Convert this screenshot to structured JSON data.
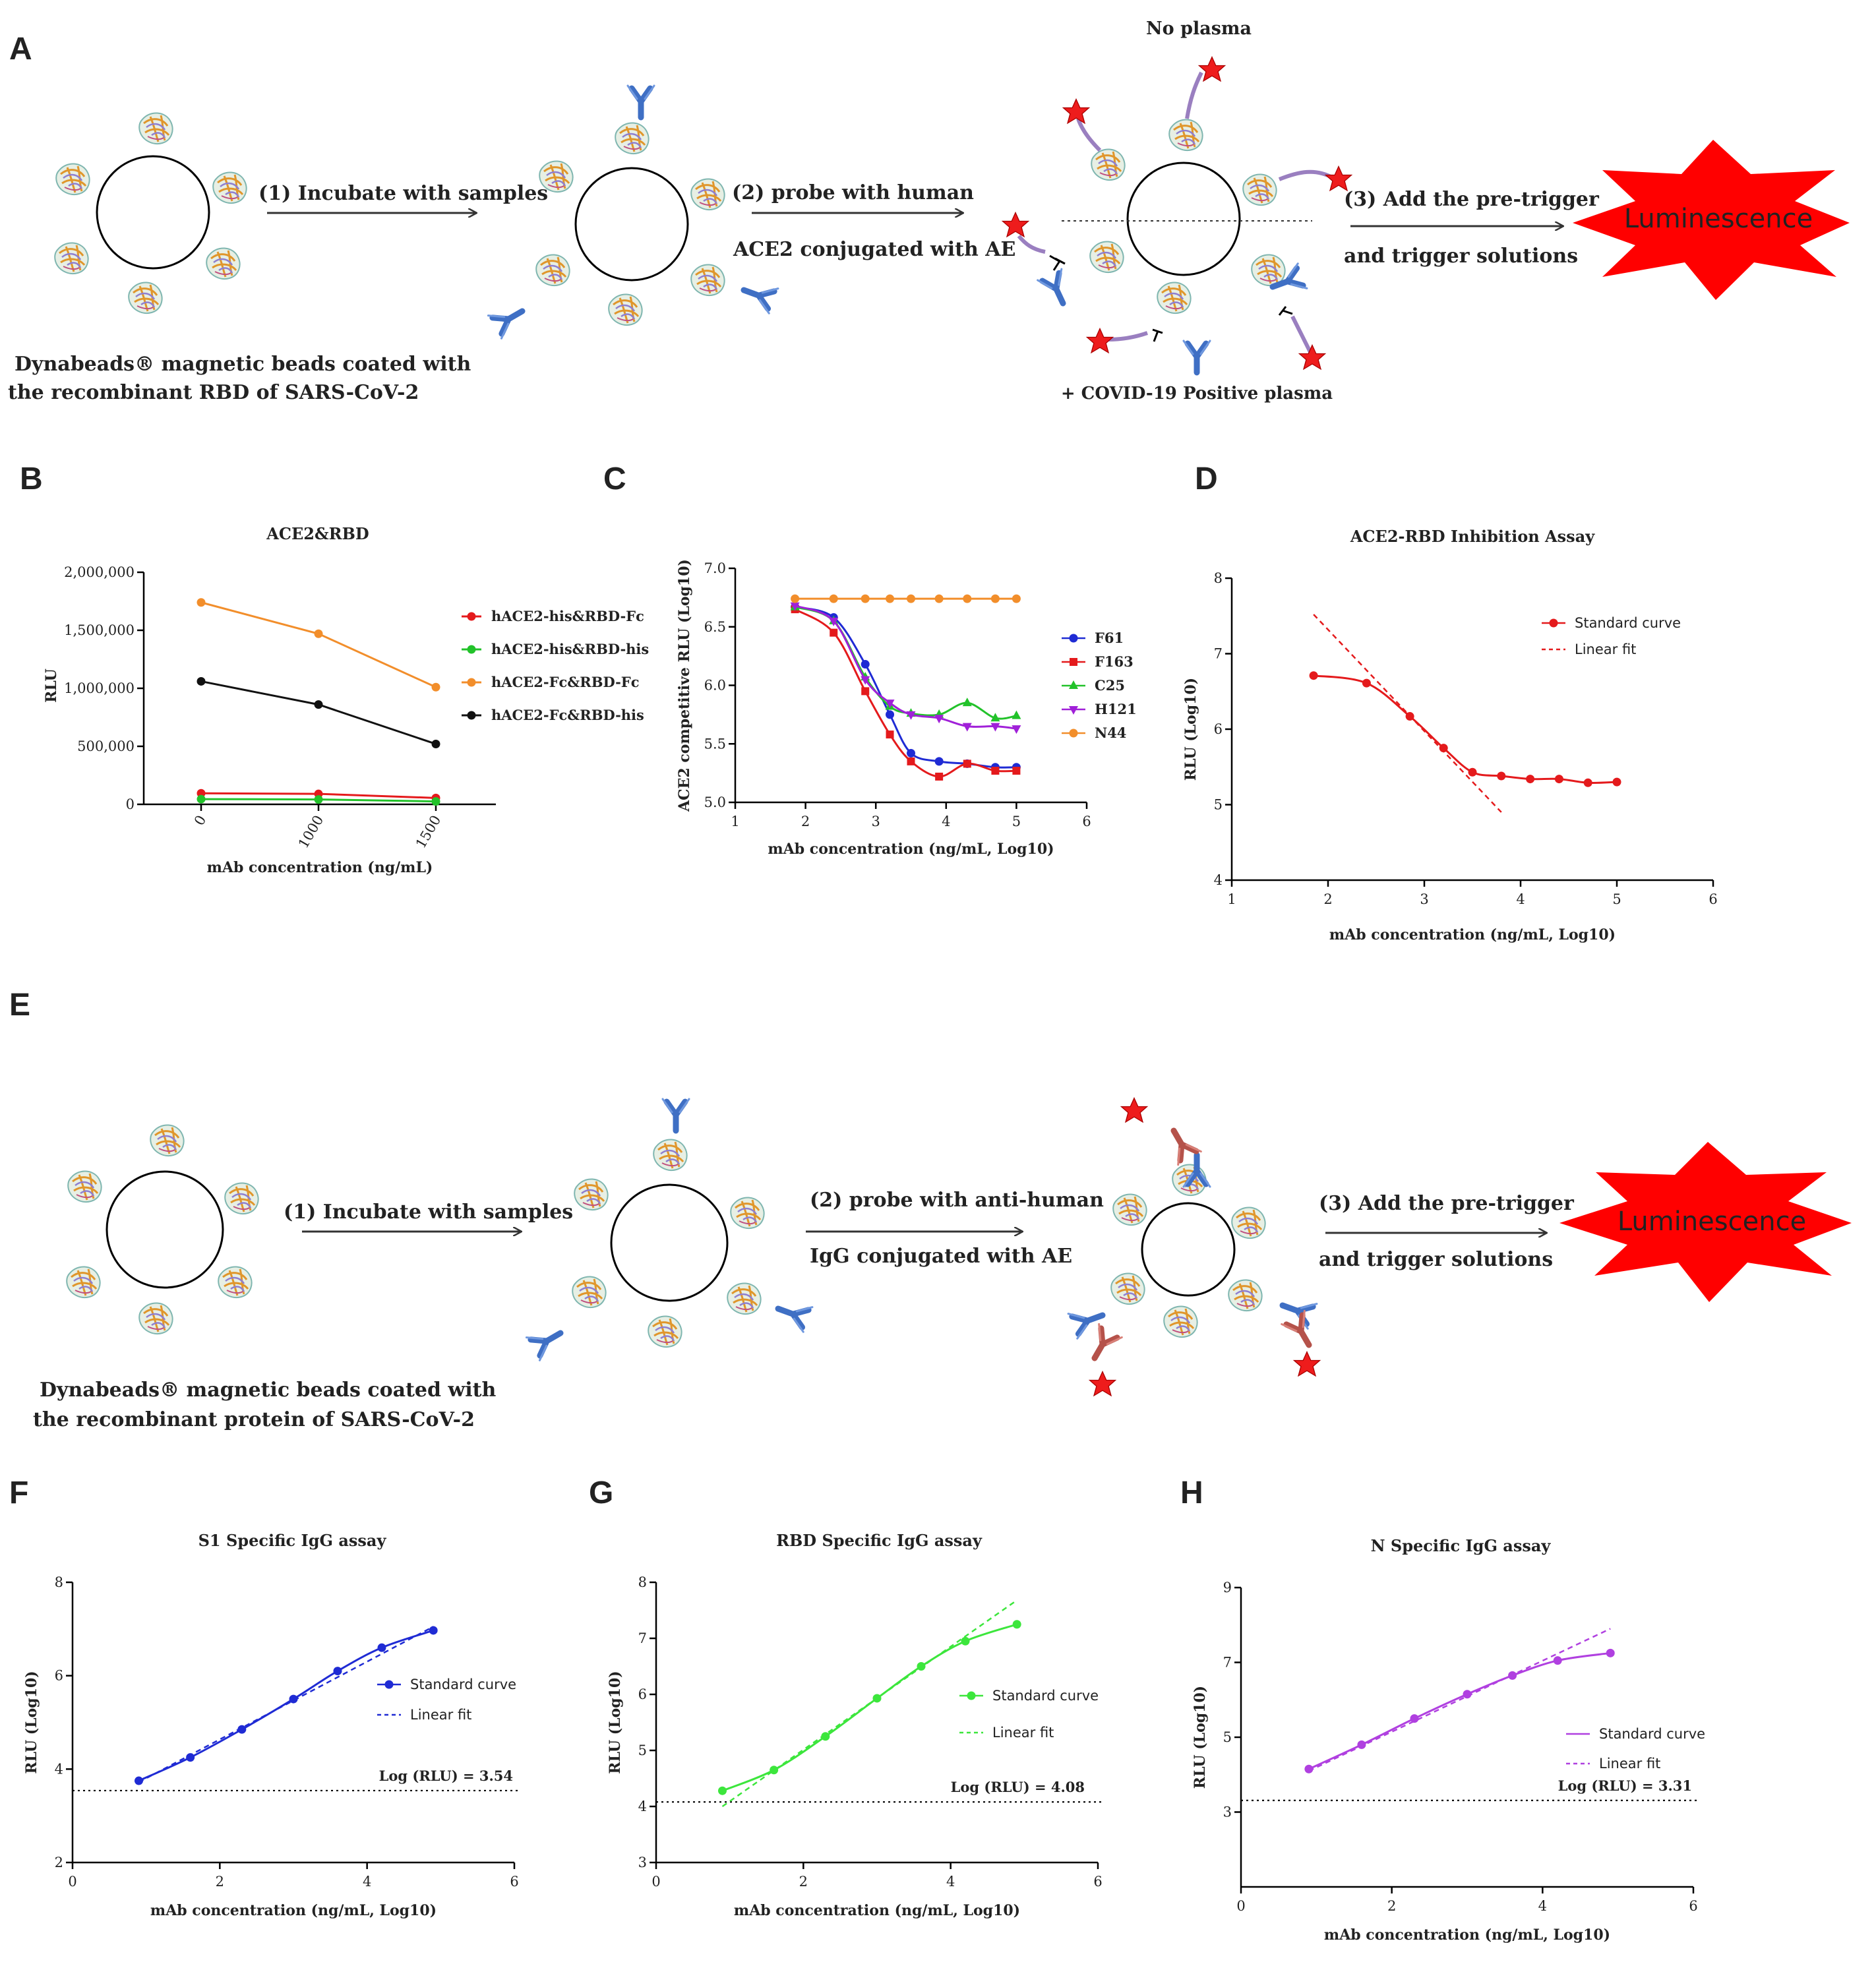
{
  "colors": {
    "red": "#e41a1c",
    "green": "#22c22a",
    "orange": "#f28e2b",
    "black": "#111111",
    "blue": "#1f2bd4",
    "magenta": "#a020d8",
    "lime": "#3ce63c",
    "purple": "#b040e0",
    "antibody": "#3f6fc4",
    "antibody_ae": "#b5524a",
    "star": "#ee1c1c"
  },
  "panel_labels": {
    "A": "A",
    "B": "B",
    "C": "C",
    "D": "D",
    "E": "E",
    "F": "F",
    "G": "G",
    "H": "H"
  },
  "diagramA": {
    "step1": "(1) Incubate with samples",
    "step2a": "(2) probe with human",
    "step2b": "ACE2 conjugated with AE",
    "step3a": "(3) Add the pre-trigger",
    "step3b": "and trigger solutions",
    "no_plasma": "No plasma",
    "positive": "+ COVID-19 Positive plasma",
    "luminescence": "Luminescence",
    "caption1": "Dynabeads® magnetic beads coated with",
    "caption2": "the recombinant RBD of SARS-CoV-2"
  },
  "diagramE": {
    "step1": "(1) Incubate with samples",
    "step2a": "(2) probe with anti-human",
    "step2b": "IgG conjugated with AE",
    "step3a": "(3) Add the pre-trigger",
    "step3b": "and trigger solutions",
    "luminescence": "Luminescence",
    "caption1": "Dynabeads® magnetic beads coated with",
    "caption2": "the recombinant protein of SARS-CoV-2"
  },
  "chart_data": [
    {
      "id": "B",
      "type": "line",
      "title": "ACE2&RBD",
      "xlabel": "mAb concentration (ng/mL)",
      "ylabel": "RLU",
      "categories": [
        "0",
        "1000",
        "1500"
      ],
      "ylim": [
        0,
        2000000
      ],
      "yticks": [
        "0",
        "500,000",
        "1,000,000",
        "1,500,000",
        "2,000,000"
      ],
      "legend_position": "right",
      "series": [
        {
          "name": "hACE2-his&RBD-Fc",
          "color_key": "red",
          "values": [
            95000,
            90000,
            55000
          ]
        },
        {
          "name": "hACE2-his&RBD-his",
          "color_key": "green",
          "values": [
            45000,
            42000,
            25000
          ]
        },
        {
          "name": "hACE2-Fc&RBD-Fc",
          "color_key": "orange",
          "values": [
            1740000,
            1470000,
            1010000
          ]
        },
        {
          "name": "hACE2-Fc&RBD-his",
          "color_key": "black",
          "values": [
            1060000,
            860000,
            520000
          ]
        }
      ]
    },
    {
      "id": "C",
      "type": "line",
      "title": "",
      "xlabel": "mAb concentration (ng/mL, Log10)",
      "ylabel": "ACE2 competitive RLU (Log10)",
      "xlim": [
        1,
        6
      ],
      "ylim": [
        5.0,
        7.0
      ],
      "xticks": [
        "1",
        "2",
        "3",
        "4",
        "5",
        "6"
      ],
      "yticks": [
        "5.0",
        "5.5",
        "6.0",
        "6.5",
        "7.0"
      ],
      "legend_position": "right",
      "x": [
        1.85,
        2.4,
        2.85,
        3.2,
        3.5,
        3.9,
        4.3,
        4.7,
        5.0
      ],
      "series": [
        {
          "name": "F61",
          "color_key": "blue",
          "values": [
            6.67,
            6.58,
            6.18,
            5.75,
            5.42,
            5.35,
            5.33,
            5.3,
            5.3
          ]
        },
        {
          "name": "F163",
          "color_key": "red",
          "values": [
            6.65,
            6.45,
            5.95,
            5.58,
            5.35,
            5.22,
            5.33,
            5.27,
            5.27
          ]
        },
        {
          "name": "C25",
          "color_key": "green",
          "values": [
            6.67,
            6.55,
            6.07,
            5.82,
            5.76,
            5.75,
            5.85,
            5.72,
            5.74
          ]
        },
        {
          "name": "H121",
          "color_key": "magenta",
          "values": [
            6.68,
            6.55,
            6.05,
            5.85,
            5.75,
            5.72,
            5.65,
            5.65,
            5.63
          ]
        },
        {
          "name": "N44",
          "color_key": "orange",
          "values": [
            6.74,
            6.74,
            6.74,
            6.74,
            6.74,
            6.74,
            6.74,
            6.74,
            6.74
          ]
        }
      ]
    },
    {
      "id": "D",
      "type": "line",
      "title": "ACE2-RBD Inhibition Assay",
      "xlabel": "mAb concentration (ng/mL, Log10)",
      "ylabel": "RLU (Log10)",
      "xlim": [
        1,
        6
      ],
      "ylim": [
        4,
        8
      ],
      "xticks": [
        "1",
        "2",
        "3",
        "4",
        "5",
        "6"
      ],
      "yticks": [
        "4",
        "5",
        "6",
        "7",
        "8"
      ],
      "legend_position": "top-right",
      "x": [
        1.85,
        2.4,
        2.85,
        3.2,
        3.5,
        3.8,
        4.1,
        4.4,
        4.7,
        5.0
      ],
      "series": [
        {
          "name": "Standard curve",
          "color_key": "red",
          "values": [
            6.71,
            6.61,
            6.17,
            5.75,
            5.43,
            5.38,
            5.34,
            5.34,
            5.29,
            5.3
          ]
        },
        {
          "name": "Linear fit",
          "color_key": "red",
          "dashed": true,
          "x": [
            1.85,
            3.8
          ],
          "values": [
            7.52,
            4.9
          ]
        }
      ]
    },
    {
      "id": "F",
      "type": "line",
      "title": "S1 Specific IgG assay",
      "xlabel": "mAb concentration (ng/mL, Log10)",
      "ylabel": "RLU (Log10)",
      "xlim": [
        0,
        6
      ],
      "ylim": [
        2,
        8
      ],
      "xticks": [
        "0",
        "2",
        "4",
        "6"
      ],
      "yticks": [
        "2",
        "4",
        "6",
        "8"
      ],
      "legend_position": "right",
      "threshold": 3.54,
      "threshold_label": "Log (RLU) = 3.54",
      "x": [
        0.9,
        1.6,
        2.3,
        3.0,
        3.6,
        4.2,
        4.9
      ],
      "series": [
        {
          "name": "Standard curve",
          "color_key": "blue",
          "values": [
            3.75,
            4.25,
            4.85,
            5.5,
            6.1,
            6.6,
            6.97
          ]
        },
        {
          "name": "Linear fit",
          "color_key": "blue",
          "dashed": true,
          "x": [
            0.9,
            4.9
          ],
          "values": [
            3.72,
            7.05
          ]
        }
      ]
    },
    {
      "id": "G",
      "type": "line",
      "title": "RBD Specific IgG assay",
      "xlabel": "mAb concentration (ng/mL, Log10)",
      "ylabel": "RLU (Log10)",
      "xlim": [
        0,
        6
      ],
      "ylim": [
        3,
        8
      ],
      "xticks": [
        "0",
        "2",
        "4",
        "6"
      ],
      "yticks": [
        "3",
        "4",
        "5",
        "6",
        "7",
        "8"
      ],
      "legend_position": "right",
      "threshold": 4.08,
      "threshold_label": "Log (RLU) = 4.08",
      "x": [
        0.9,
        1.6,
        2.3,
        3.0,
        3.6,
        4.2,
        4.9
      ],
      "series": [
        {
          "name": "Standard curve",
          "color_key": "lime",
          "values": [
            4.28,
            4.65,
            5.25,
            5.93,
            6.5,
            6.95,
            7.25
          ]
        },
        {
          "name": "Linear fit",
          "color_key": "lime",
          "dashed": true,
          "x": [
            0.9,
            4.9
          ],
          "values": [
            4.0,
            7.68
          ]
        }
      ]
    },
    {
      "id": "H",
      "type": "line",
      "title": "N Specific IgG assay",
      "xlabel": "mAb concentration (ng/mL, Log10)",
      "ylabel": "RLU (Log10)",
      "xlim": [
        0,
        6
      ],
      "ylim": [
        1,
        9
      ],
      "xticks": [
        "0",
        "2",
        "4",
        "6"
      ],
      "yticks": [
        "3",
        "5",
        "7",
        "9"
      ],
      "legend_position": "right",
      "threshold": 3.31,
      "threshold_label": "Log (RLU) = 3.31",
      "x": [
        0.9,
        1.6,
        2.3,
        3.0,
        3.6,
        4.2,
        4.9
      ],
      "series": [
        {
          "name": "Standard curve",
          "color_key": "purple",
          "values": [
            4.15,
            4.8,
            5.5,
            6.15,
            6.65,
            7.05,
            7.25
          ]
        },
        {
          "name": "Linear fit",
          "color_key": "purple",
          "dashed": true,
          "x": [
            0.9,
            4.9
          ],
          "values": [
            4.1,
            7.9
          ]
        }
      ]
    }
  ]
}
